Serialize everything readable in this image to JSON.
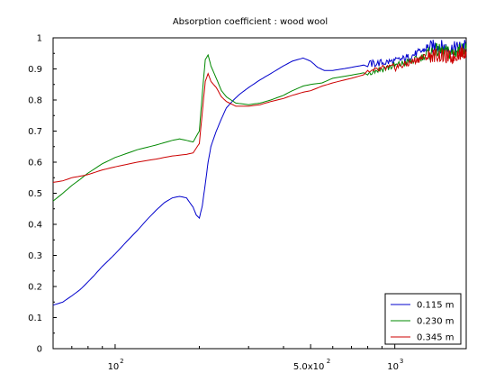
{
  "chart_data": {
    "type": "line",
    "title": "Absorption coefficient : wood wool",
    "xlabel": "",
    "ylabel": "",
    "x_scale": "log",
    "xlim": [
      60,
      1800
    ],
    "ylim": [
      0,
      1
    ],
    "grid": false,
    "legend_position": "bottom-right",
    "y_ticks": [
      {
        "value": 0,
        "label": "0"
      },
      {
        "value": 0.1,
        "label": "0.1"
      },
      {
        "value": 0.2,
        "label": "0.2"
      },
      {
        "value": 0.3,
        "label": "0.3"
      },
      {
        "value": 0.4,
        "label": "0.4"
      },
      {
        "value": 0.5,
        "label": "0.5"
      },
      {
        "value": 0.6,
        "label": "0.6"
      },
      {
        "value": 0.7,
        "label": "0.7"
      },
      {
        "value": 0.8,
        "label": "0.8"
      },
      {
        "value": 0.9,
        "label": "0.9"
      },
      {
        "value": 1,
        "label": "1"
      }
    ],
    "x_ticks": [
      {
        "value": 100,
        "label": "10",
        "exp": "2"
      },
      {
        "value": 500,
        "label": "5.0x10",
        "exp": "2"
      },
      {
        "value": 1000,
        "label": "10",
        "exp": "3"
      }
    ],
    "series": [
      {
        "name": "0.115 m",
        "color": "#0000cc",
        "points": [
          [
            60,
            0.14
          ],
          [
            65,
            0.15
          ],
          [
            70,
            0.17
          ],
          [
            75,
            0.19
          ],
          [
            80,
            0.215
          ],
          [
            85,
            0.24
          ],
          [
            90,
            0.265
          ],
          [
            95,
            0.285
          ],
          [
            100,
            0.305
          ],
          [
            110,
            0.345
          ],
          [
            120,
            0.38
          ],
          [
            130,
            0.415
          ],
          [
            140,
            0.445
          ],
          [
            150,
            0.47
          ],
          [
            160,
            0.485
          ],
          [
            170,
            0.49
          ],
          [
            180,
            0.485
          ],
          [
            190,
            0.455
          ],
          [
            195,
            0.43
          ],
          [
            200,
            0.42
          ],
          [
            205,
            0.46
          ],
          [
            210,
            0.53
          ],
          [
            215,
            0.6
          ],
          [
            220,
            0.65
          ],
          [
            230,
            0.7
          ],
          [
            240,
            0.74
          ],
          [
            250,
            0.775
          ],
          [
            265,
            0.8
          ],
          [
            280,
            0.82
          ],
          [
            300,
            0.84
          ],
          [
            330,
            0.865
          ],
          [
            360,
            0.885
          ],
          [
            400,
            0.91
          ],
          [
            430,
            0.925
          ],
          [
            470,
            0.935
          ],
          [
            500,
            0.925
          ],
          [
            530,
            0.905
          ],
          [
            560,
            0.895
          ],
          [
            600,
            0.895
          ],
          [
            650,
            0.9
          ],
          [
            700,
            0.905
          ],
          [
            800,
            0.915
          ],
          [
            900,
            0.92
          ],
          [
            1000,
            0.925
          ],
          [
            1100,
            0.935
          ],
          [
            1200,
            0.95
          ],
          [
            1300,
            0.965
          ],
          [
            1400,
            0.975
          ],
          [
            1500,
            0.97
          ],
          [
            1600,
            0.965
          ],
          [
            1700,
            0.97
          ],
          [
            1800,
            0.975
          ]
        ]
      },
      {
        "name": "0.230 m",
        "color": "#008800",
        "points": [
          [
            60,
            0.475
          ],
          [
            65,
            0.5
          ],
          [
            70,
            0.525
          ],
          [
            75,
            0.545
          ],
          [
            80,
            0.565
          ],
          [
            90,
            0.595
          ],
          [
            100,
            0.615
          ],
          [
            120,
            0.64
          ],
          [
            140,
            0.655
          ],
          [
            160,
            0.67
          ],
          [
            170,
            0.675
          ],
          [
            180,
            0.67
          ],
          [
            190,
            0.665
          ],
          [
            200,
            0.7
          ],
          [
            205,
            0.82
          ],
          [
            210,
            0.93
          ],
          [
            215,
            0.945
          ],
          [
            220,
            0.91
          ],
          [
            230,
            0.87
          ],
          [
            240,
            0.83
          ],
          [
            250,
            0.81
          ],
          [
            270,
            0.79
          ],
          [
            300,
            0.785
          ],
          [
            330,
            0.79
          ],
          [
            360,
            0.8
          ],
          [
            400,
            0.815
          ],
          [
            430,
            0.83
          ],
          [
            470,
            0.845
          ],
          [
            500,
            0.85
          ],
          [
            550,
            0.855
          ],
          [
            600,
            0.87
          ],
          [
            700,
            0.88
          ],
          [
            800,
            0.89
          ],
          [
            900,
            0.9
          ],
          [
            1000,
            0.91
          ],
          [
            1100,
            0.92
          ],
          [
            1200,
            0.93
          ],
          [
            1300,
            0.945
          ],
          [
            1400,
            0.96
          ],
          [
            1500,
            0.955
          ],
          [
            1600,
            0.95
          ],
          [
            1700,
            0.96
          ],
          [
            1800,
            0.965
          ]
        ]
      },
      {
        "name": "0.345 m",
        "color": "#cc0000",
        "points": [
          [
            60,
            0.535
          ],
          [
            65,
            0.54
          ],
          [
            70,
            0.55
          ],
          [
            75,
            0.555
          ],
          [
            80,
            0.56
          ],
          [
            90,
            0.575
          ],
          [
            100,
            0.585
          ],
          [
            120,
            0.6
          ],
          [
            140,
            0.61
          ],
          [
            160,
            0.62
          ],
          [
            180,
            0.625
          ],
          [
            190,
            0.63
          ],
          [
            200,
            0.66
          ],
          [
            205,
            0.76
          ],
          [
            210,
            0.86
          ],
          [
            215,
            0.885
          ],
          [
            220,
            0.86
          ],
          [
            230,
            0.84
          ],
          [
            240,
            0.81
          ],
          [
            250,
            0.795
          ],
          [
            270,
            0.78
          ],
          [
            300,
            0.78
          ],
          [
            330,
            0.785
          ],
          [
            360,
            0.795
          ],
          [
            400,
            0.805
          ],
          [
            430,
            0.815
          ],
          [
            470,
            0.825
          ],
          [
            500,
            0.83
          ],
          [
            550,
            0.845
          ],
          [
            600,
            0.855
          ],
          [
            700,
            0.87
          ],
          [
            800,
            0.885
          ],
          [
            900,
            0.9
          ],
          [
            1000,
            0.905
          ],
          [
            1100,
            0.915
          ],
          [
            1200,
            0.93
          ],
          [
            1300,
            0.94
          ],
          [
            1400,
            0.945
          ],
          [
            1500,
            0.94
          ],
          [
            1600,
            0.935
          ],
          [
            1700,
            0.95
          ],
          [
            1800,
            0.955
          ]
        ]
      }
    ]
  }
}
